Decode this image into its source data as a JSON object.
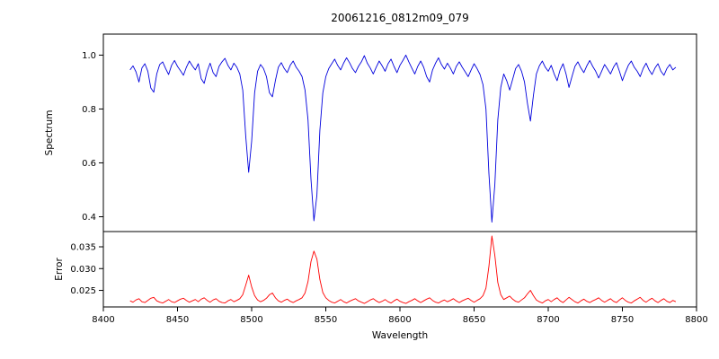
{
  "figure": {
    "title": "20061216_0812m09_079",
    "xlabel": "Wavelength",
    "background": "#ffffff",
    "frame_color": "#000000"
  },
  "chart_data": [
    {
      "type": "line",
      "name": "spectrum",
      "ylabel": "Spectrum",
      "color": "#0000dd",
      "xlim": [
        8400,
        8800
      ],
      "ylim": [
        0.345,
        1.078
      ],
      "yticks": [
        0.4,
        0.6,
        0.8,
        1.0
      ],
      "ytick_labels": [
        "0.4",
        "0.6",
        "0.8",
        "1.0"
      ],
      "x_start": 8418,
      "x_step": 2,
      "values": [
        0.945,
        0.96,
        0.938,
        0.9,
        0.952,
        0.968,
        0.94,
        0.878,
        0.862,
        0.93,
        0.965,
        0.975,
        0.95,
        0.928,
        0.962,
        0.98,
        0.958,
        0.942,
        0.925,
        0.955,
        0.978,
        0.96,
        0.945,
        0.968,
        0.912,
        0.895,
        0.94,
        0.97,
        0.935,
        0.92,
        0.958,
        0.975,
        0.988,
        0.962,
        0.945,
        0.97,
        0.955,
        0.93,
        0.87,
        0.7,
        0.565,
        0.68,
        0.86,
        0.94,
        0.965,
        0.95,
        0.92,
        0.86,
        0.845,
        0.905,
        0.955,
        0.972,
        0.95,
        0.935,
        0.962,
        0.978,
        0.955,
        0.94,
        0.92,
        0.87,
        0.76,
        0.54,
        0.385,
        0.48,
        0.72,
        0.86,
        0.92,
        0.95,
        0.968,
        0.985,
        0.962,
        0.945,
        0.97,
        0.99,
        0.972,
        0.95,
        0.935,
        0.958,
        0.975,
        0.998,
        0.97,
        0.952,
        0.93,
        0.955,
        0.978,
        0.96,
        0.94,
        0.968,
        0.985,
        0.958,
        0.935,
        0.962,
        0.98,
        1.0,
        0.975,
        0.952,
        0.93,
        0.958,
        0.978,
        0.955,
        0.92,
        0.9,
        0.945,
        0.97,
        0.99,
        0.965,
        0.948,
        0.97,
        0.952,
        0.93,
        0.958,
        0.975,
        0.955,
        0.938,
        0.92,
        0.945,
        0.968,
        0.95,
        0.928,
        0.89,
        0.8,
        0.56,
        0.38,
        0.52,
        0.76,
        0.88,
        0.93,
        0.905,
        0.87,
        0.91,
        0.95,
        0.965,
        0.94,
        0.9,
        0.82,
        0.755,
        0.85,
        0.93,
        0.96,
        0.978,
        0.955,
        0.94,
        0.962,
        0.93,
        0.905,
        0.945,
        0.968,
        0.93,
        0.88,
        0.92,
        0.958,
        0.975,
        0.952,
        0.935,
        0.96,
        0.98,
        0.958,
        0.94,
        0.915,
        0.94,
        0.965,
        0.948,
        0.93,
        0.955,
        0.972,
        0.94,
        0.905,
        0.935,
        0.962,
        0.978,
        0.955,
        0.94,
        0.92,
        0.95,
        0.97,
        0.945,
        0.928,
        0.952,
        0.968,
        0.94,
        0.925,
        0.95,
        0.965,
        0.945,
        0.955
      ]
    },
    {
      "type": "line",
      "name": "error",
      "ylabel": "Error",
      "xlabel": "Wavelength",
      "color": "#ff0000",
      "xlim": [
        8400,
        8800
      ],
      "ylim": [
        0.0212,
        0.0385
      ],
      "yticks": [
        0.025,
        0.03,
        0.035
      ],
      "ytick_labels": [
        "0.025",
        "0.030",
        "0.035"
      ],
      "xticks": [
        8400,
        8450,
        8500,
        8550,
        8600,
        8650,
        8700,
        8750,
        8800
      ],
      "xtick_labels": [
        "8400",
        "8450",
        "8500",
        "8550",
        "8600",
        "8650",
        "8700",
        "8750",
        "8800"
      ],
      "x_start": 8418,
      "x_step": 2,
      "values": [
        0.0226,
        0.0223,
        0.0228,
        0.0231,
        0.0224,
        0.0222,
        0.0227,
        0.0232,
        0.0234,
        0.0226,
        0.0223,
        0.0221,
        0.0225,
        0.0229,
        0.0224,
        0.0222,
        0.0226,
        0.023,
        0.0232,
        0.0227,
        0.0223,
        0.0226,
        0.0229,
        0.0224,
        0.023,
        0.0233,
        0.0227,
        0.0223,
        0.0228,
        0.0231,
        0.0225,
        0.0222,
        0.0221,
        0.0226,
        0.0229,
        0.0224,
        0.0227,
        0.0231,
        0.024,
        0.0262,
        0.0285,
        0.0258,
        0.0238,
        0.0228,
        0.0224,
        0.0227,
        0.0232,
        0.024,
        0.0244,
        0.0233,
        0.0226,
        0.0223,
        0.0227,
        0.023,
        0.0225,
        0.0222,
        0.0226,
        0.0229,
        0.0233,
        0.0244,
        0.027,
        0.0316,
        0.034,
        0.0322,
        0.0275,
        0.0245,
        0.0233,
        0.0227,
        0.0223,
        0.0221,
        0.0225,
        0.0229,
        0.0224,
        0.0221,
        0.0225,
        0.0228,
        0.0231,
        0.0226,
        0.0223,
        0.022,
        0.0224,
        0.0228,
        0.0231,
        0.0226,
        0.0222,
        0.0225,
        0.0229,
        0.0224,
        0.0221,
        0.0226,
        0.023,
        0.0225,
        0.0222,
        0.022,
        0.0224,
        0.0227,
        0.0231,
        0.0226,
        0.0222,
        0.0226,
        0.023,
        0.0233,
        0.0227,
        0.0223,
        0.0221,
        0.0225,
        0.0228,
        0.0224,
        0.0227,
        0.0231,
        0.0226,
        0.0222,
        0.0226,
        0.0229,
        0.0232,
        0.0227,
        0.0223,
        0.0227,
        0.0231,
        0.0238,
        0.0255,
        0.0305,
        0.0375,
        0.033,
        0.0268,
        0.024,
        0.0229,
        0.0233,
        0.0237,
        0.023,
        0.0225,
        0.0223,
        0.0228,
        0.0233,
        0.0242,
        0.025,
        0.0238,
        0.0228,
        0.0224,
        0.0221,
        0.0226,
        0.0229,
        0.0224,
        0.0229,
        0.0233,
        0.0226,
        0.0222,
        0.0228,
        0.0234,
        0.0229,
        0.0224,
        0.0221,
        0.0226,
        0.023,
        0.0225,
        0.0222,
        0.0226,
        0.0229,
        0.0233,
        0.0227,
        0.0223,
        0.0227,
        0.0231,
        0.0225,
        0.0222,
        0.0228,
        0.0233,
        0.0227,
        0.0223,
        0.0221,
        0.0226,
        0.023,
        0.0234,
        0.0227,
        0.0223,
        0.0228,
        0.0232,
        0.0226,
        0.0222,
        0.0227,
        0.0231,
        0.0225,
        0.0222,
        0.0227,
        0.0224
      ]
    }
  ]
}
